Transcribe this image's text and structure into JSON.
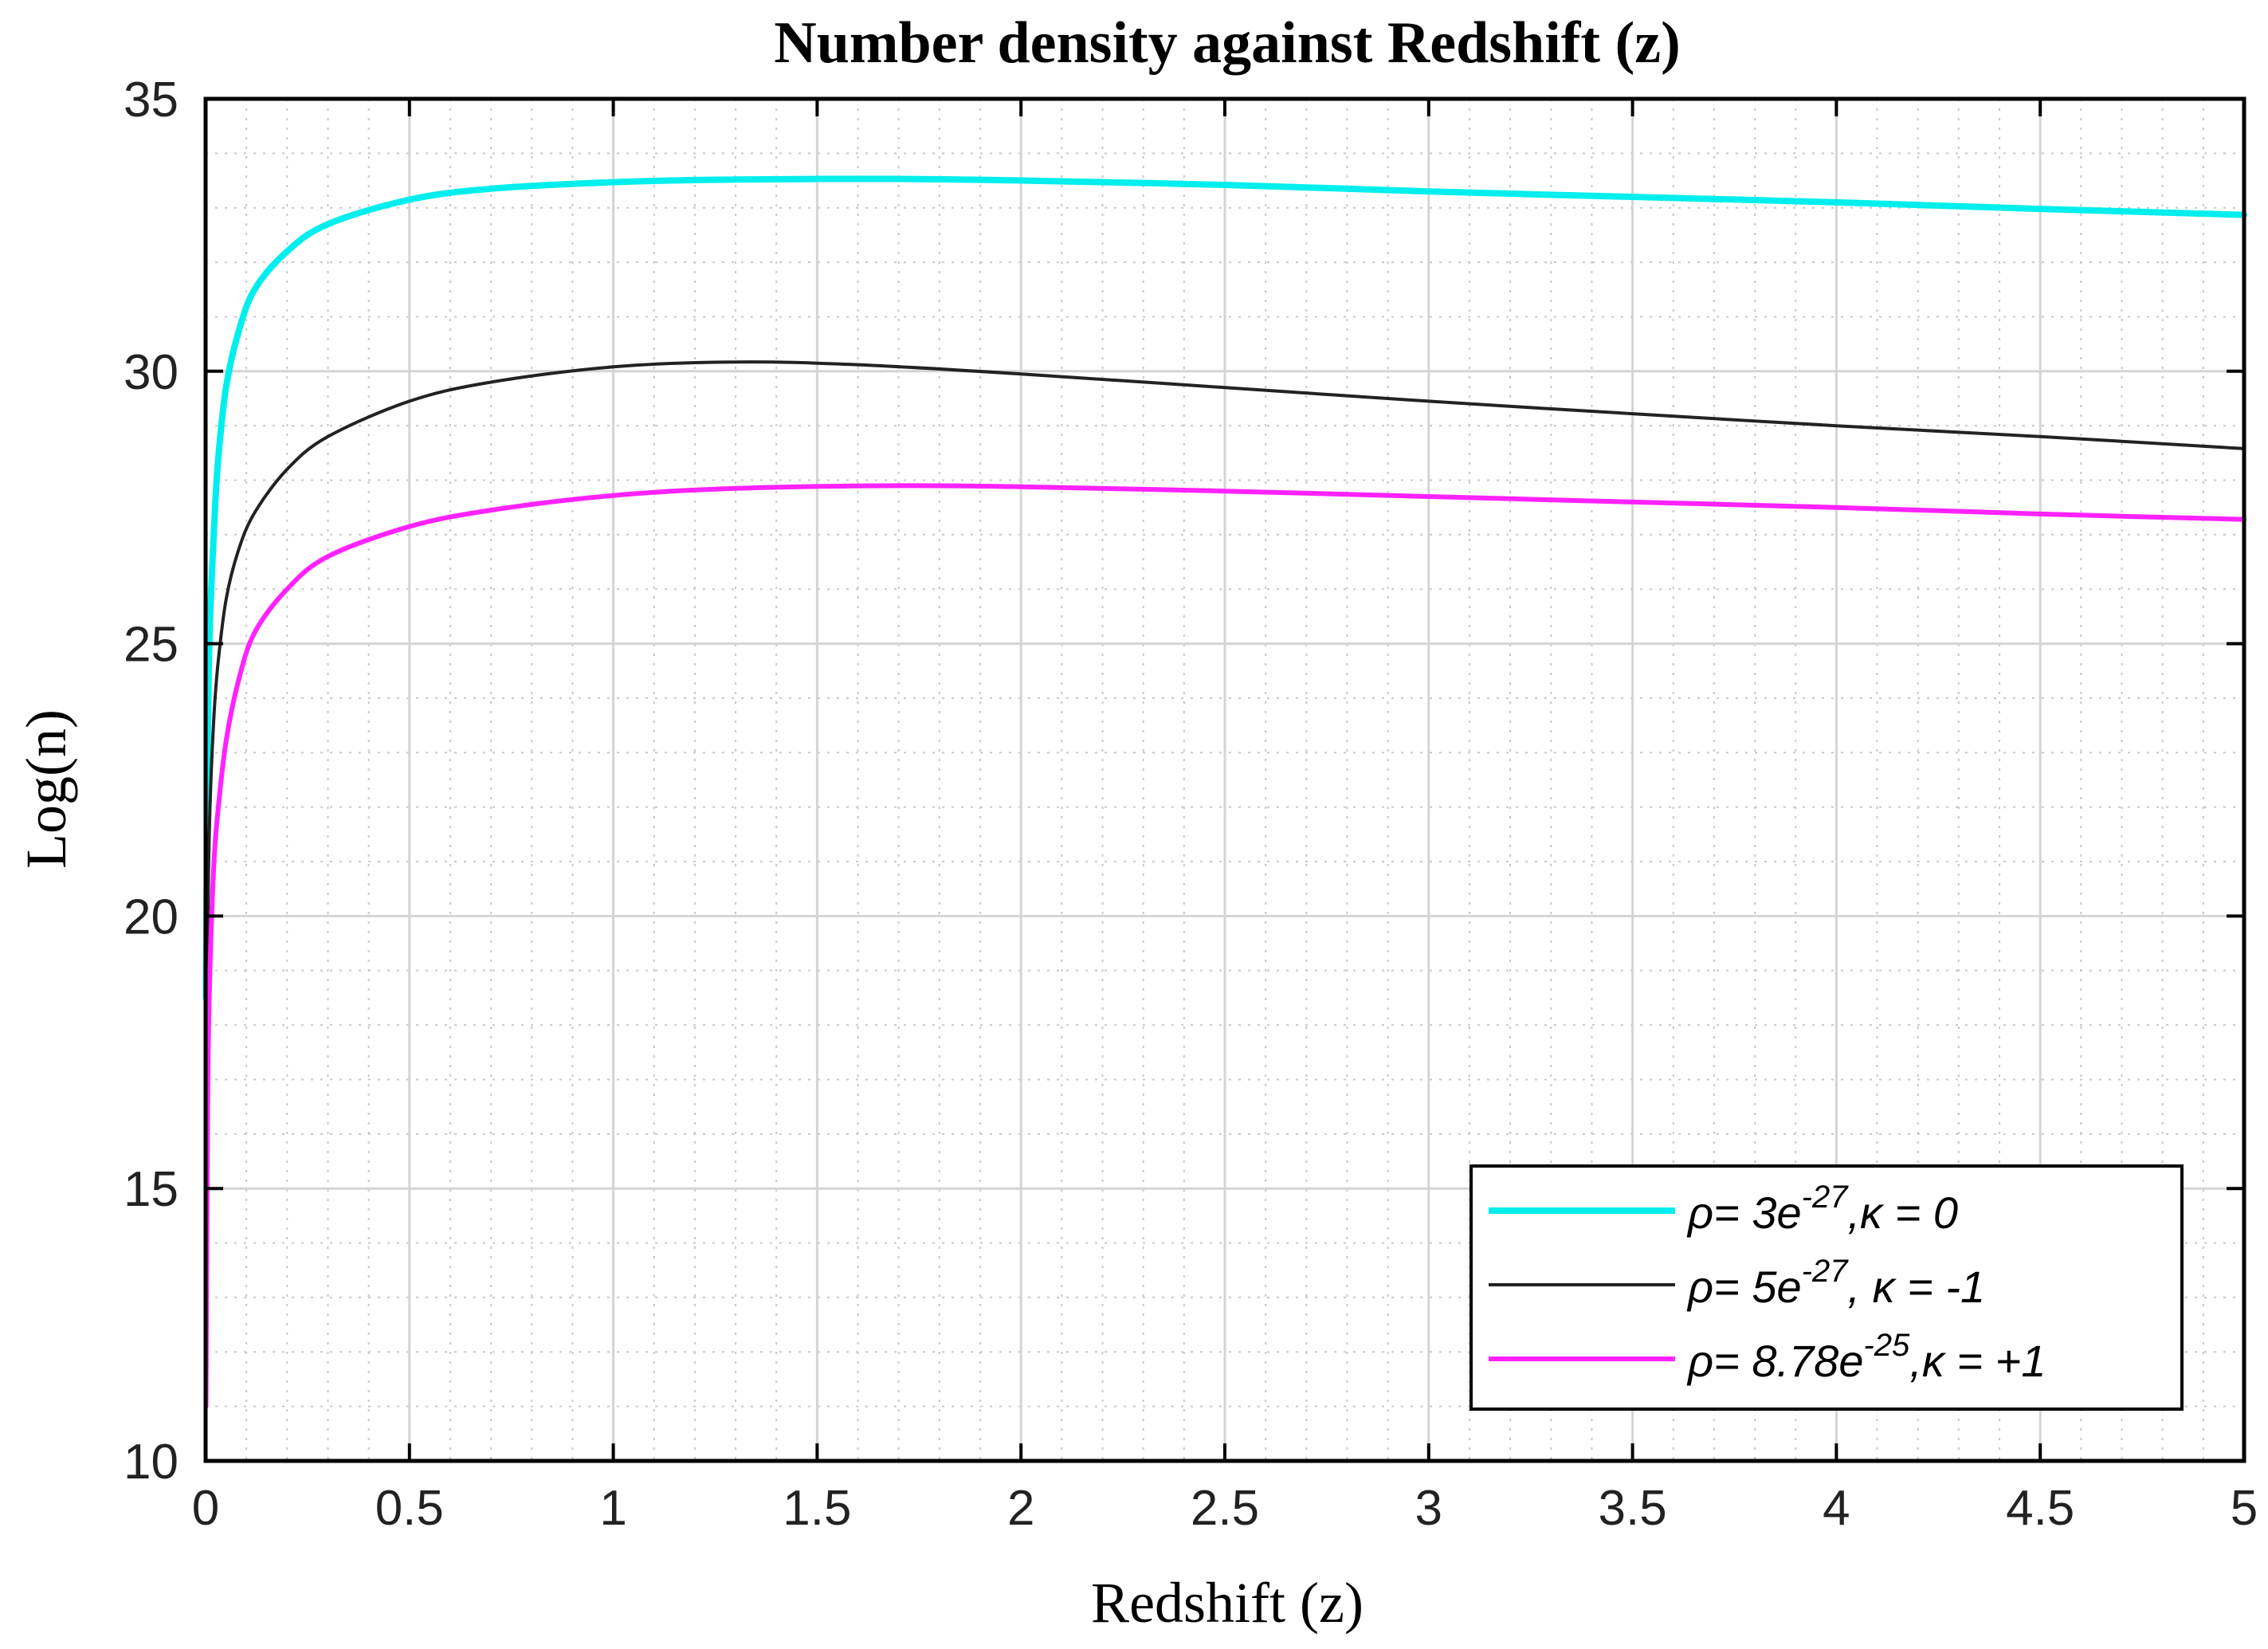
{
  "chart_data": {
    "type": "line",
    "title": "Number density against Redshift (z)",
    "xlabel": "Redshift (z)",
    "ylabel": "Log(n)",
    "xlim": [
      0,
      5
    ],
    "ylim": [
      10,
      35
    ],
    "xticks": [
      0,
      0.5,
      1,
      1.5,
      2,
      2.5,
      3,
      3.5,
      4,
      4.5,
      5
    ],
    "xtick_labels": [
      "0",
      "0.5",
      "1",
      "1.5",
      "2",
      "2.5",
      "3",
      "3.5",
      "4",
      "4.5",
      "5"
    ],
    "yticks": [
      10,
      15,
      20,
      25,
      30,
      35
    ],
    "ytick_labels": [
      "10",
      "15",
      "20",
      "25",
      "30",
      "35"
    ],
    "grid": true,
    "minor_grid": true,
    "legend_position": "bottom-right",
    "series": [
      {
        "name": "ρ= 3e^-27, κ = 0",
        "legend": {
          "rho_prefix": "ρ= 3",
          "base": "e",
          "exponent": "-27",
          "kappa_text": ",κ = 0"
        },
        "color": "#00eeee",
        "x": [
          0.001,
          0.005,
          0.01,
          0.02,
          0.03,
          0.05,
          0.08,
          0.12,
          0.2,
          0.3,
          0.5,
          0.7,
          1.0,
          1.3,
          1.7,
          2.0,
          2.5,
          3.0,
          3.5,
          4.0,
          4.5,
          5.0
        ],
        "y": [
          18.5,
          23.0,
          25.2,
          27.0,
          28.3,
          29.7,
          30.7,
          31.5,
          32.2,
          32.7,
          33.15,
          33.35,
          33.47,
          33.52,
          33.53,
          33.5,
          33.42,
          33.3,
          33.2,
          33.1,
          32.98,
          32.87
        ]
      },
      {
        "name": "ρ= 5e^-27, κ = -1",
        "legend": {
          "rho_prefix": "ρ= 5",
          "base": "e",
          "exponent": "-27",
          "kappa_text": ", κ = -1"
        },
        "color": "#222222",
        "x": [
          0.001,
          0.005,
          0.01,
          0.02,
          0.03,
          0.05,
          0.08,
          0.12,
          0.2,
          0.3,
          0.5,
          0.7,
          1.0,
          1.3,
          1.6,
          2.0,
          2.5,
          3.0,
          3.5,
          4.0,
          4.5,
          5.0
        ],
        "y": [
          14.5,
          19.5,
          21.8,
          23.6,
          24.6,
          25.8,
          26.7,
          27.4,
          28.2,
          28.8,
          29.45,
          29.8,
          30.08,
          30.17,
          30.12,
          29.95,
          29.7,
          29.45,
          29.22,
          29.0,
          28.8,
          28.58
        ]
      },
      {
        "name": "ρ= 8.78e^-25, κ = +1",
        "legend": {
          "rho_prefix": "ρ= 8.78",
          "base": "e",
          "exponent": "-25",
          "kappa_text": ",κ = +1"
        },
        "color": "#ff22ff",
        "x": [
          0.001,
          0.005,
          0.01,
          0.02,
          0.03,
          0.05,
          0.08,
          0.12,
          0.2,
          0.3,
          0.5,
          0.7,
          1.0,
          1.3,
          1.7,
          2.0,
          2.5,
          3.0,
          3.5,
          4.0,
          4.5,
          5.0
        ],
        "y": [
          11.0,
          16.5,
          18.8,
          20.9,
          21.9,
          23.2,
          24.3,
          25.2,
          26.0,
          26.6,
          27.15,
          27.45,
          27.72,
          27.85,
          27.9,
          27.88,
          27.8,
          27.7,
          27.6,
          27.5,
          27.38,
          27.28
        ]
      }
    ]
  }
}
